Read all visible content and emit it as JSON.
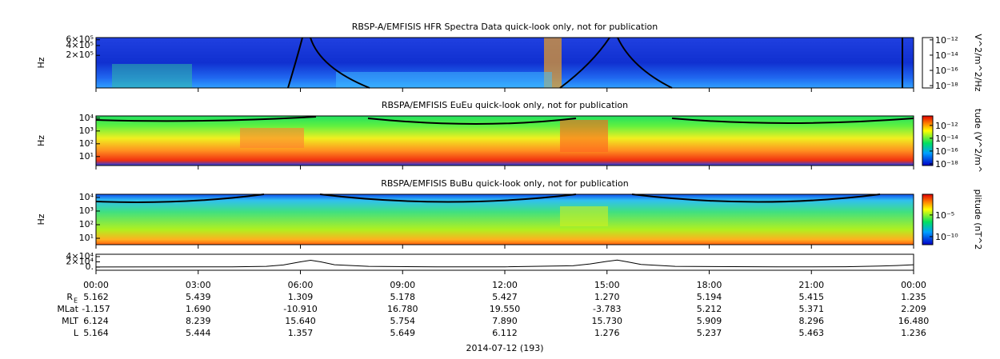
{
  "chart_data": [
    {
      "type": "spectrogram",
      "title": "RBSP-A/EMFISIS  HFR Spectra Data quick-look only, not for publication",
      "ylabel": "Hz",
      "log": true,
      "ylim": [
        20000,
        700000
      ],
      "yticks": [
        {
          "value": 600000,
          "label": "6×10⁵"
        },
        {
          "value": 400000,
          "label": "4×10⁵"
        },
        {
          "value": 200000,
          "label": "2×10⁵"
        }
      ],
      "colorbar_label": "V^2/m^2/Hz",
      "clim": [
        5e-19,
        2e-12
      ],
      "cticks": [
        {
          "value": 1e-12,
          "label": "10⁻¹²"
        },
        {
          "value": 1e-14,
          "label": "10⁻¹⁴"
        },
        {
          "value": 1e-16,
          "label": "10⁻¹⁶"
        },
        {
          "value": 1e-18,
          "label": "10⁻¹⁸"
        }
      ]
    },
    {
      "type": "spectrogram",
      "title": "RBSPA/EMFISIS  EuEu quick-look only, not for publication",
      "ylabel": "Hz",
      "log": true,
      "ylim": [
        2,
        15000
      ],
      "yticks": [
        {
          "value": 10000,
          "label": "10⁴"
        },
        {
          "value": 1000,
          "label": "10³"
        },
        {
          "value": 100,
          "label": "10²"
        },
        {
          "value": 10,
          "label": "10¹"
        }
      ],
      "colorbar_label": "tude (V^2/m^",
      "clim": [
        5.6e-19,
        3e-11
      ],
      "cticks": [
        {
          "value": 1e-12,
          "label": "10⁻¹²"
        },
        {
          "value": 1e-14,
          "label": "10⁻¹⁴"
        },
        {
          "value": 1e-16,
          "label": "10⁻¹⁶"
        },
        {
          "value": 1e-18,
          "label": "10⁻¹⁸"
        }
      ]
    },
    {
      "type": "spectrogram",
      "title": "RBSPA/EMFISIS  BuBu quick-look only, not for publication",
      "ylabel": "Hz",
      "log": true,
      "ylim": [
        3.4,
        17000
      ],
      "yticks": [
        {
          "value": 10000,
          "label": "10⁴"
        },
        {
          "value": 1000,
          "label": "10³"
        },
        {
          "value": 100,
          "label": "10²"
        },
        {
          "value": 10,
          "label": "10¹"
        }
      ],
      "colorbar_label": "plitude (nT^2",
      "clim": [
        1.4e-12,
        0.6
      ],
      "cticks": [
        {
          "value": 1e-05,
          "label": "10⁻⁵"
        },
        {
          "value": 1e-10,
          "label": "10⁻¹⁰"
        }
      ]
    },
    {
      "type": "line",
      "ylim": [
        -12000,
        49000
      ],
      "yticks": [
        {
          "value": 40000,
          "label": "4×10⁴"
        },
        {
          "value": 20000,
          "label": "2×10⁴"
        },
        {
          "value": 0,
          "label": "0."
        }
      ],
      "x": [
        0,
        4,
        5,
        5.5,
        6,
        6.3,
        6.6,
        7,
        8,
        10,
        12,
        14,
        14.5,
        15,
        15.3,
        15.6,
        16,
        17,
        20,
        22,
        23,
        23.5,
        24
      ],
      "values": [
        500,
        1000,
        3000,
        8000,
        20000,
        26000,
        20000,
        9000,
        3000,
        800,
        1000,
        5000,
        12000,
        22000,
        27000,
        20000,
        10000,
        3000,
        700,
        1500,
        4000,
        6000,
        9000
      ],
      "xlim": [
        0,
        24
      ],
      "xticks": [
        {
          "value": 0,
          "label": "00:00"
        },
        {
          "value": 3,
          "label": "03:00"
        },
        {
          "value": 6,
          "label": "06:00"
        },
        {
          "value": 9,
          "label": "09:00"
        },
        {
          "value": 12,
          "label": "12:00"
        },
        {
          "value": 15,
          "label": "15:00"
        },
        {
          "value": 18,
          "label": "18:00"
        },
        {
          "value": 21,
          "label": "21:00"
        },
        {
          "value": 24,
          "label": "00:00"
        }
      ],
      "xlabel": "2014-07-12 (193)"
    }
  ],
  "ephemeris": {
    "rows": [
      {
        "label": "R",
        "subscript": "E",
        "values": [
          "5.162",
          "5.439",
          "1.309",
          "5.178",
          "5.427",
          "1.270",
          "5.194",
          "5.415",
          "1.235"
        ]
      },
      {
        "label": "MLat",
        "values": [
          "-1.157",
          "1.690",
          "-10.910",
          "16.780",
          "19.550",
          "-3.783",
          "5.212",
          "5.371",
          "2.209"
        ]
      },
      {
        "label": "MLT",
        "values": [
          "6.124",
          "8.239",
          "15.640",
          "5.754",
          "7.890",
          "15.730",
          "5.909",
          "8.296",
          "16.480"
        ]
      },
      {
        "label": "L",
        "values": [
          "5.164",
          "5.444",
          "1.357",
          "5.649",
          "6.112",
          "1.276",
          "5.237",
          "5.463",
          "1.236"
        ]
      }
    ]
  }
}
